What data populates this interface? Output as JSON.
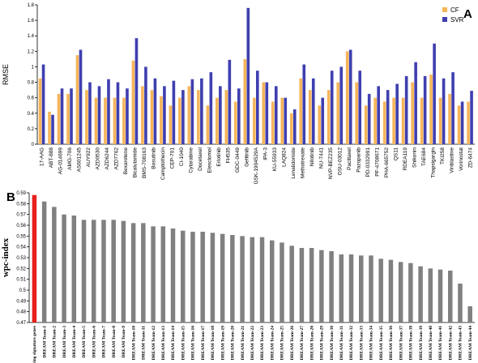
{
  "chart_data": [
    {
      "type": "bar",
      "panel": "A",
      "ylabel": "RMSE",
      "categories": [
        "17-AAG",
        "ABT-888",
        "AG-014699",
        "AMG-706",
        "AS601245",
        "AUY922",
        "AZD0530",
        "AZD6244",
        "AZD7762",
        "Bexarotene",
        "Bicalutamide",
        "BMS-708163",
        "Bosutinib",
        "Camptothecin",
        "CEP-701",
        "CI-1040",
        "Cytarabine",
        "Docetaxel",
        "Elesclomol",
        "Erlotinib",
        "FH535",
        "GDC-0449",
        "Gefitinib",
        "GSK-1904529A",
        "IPA-3",
        "KU-55933",
        "LAQ824",
        "Lenalidomide",
        "Methotrexate",
        "Nilotinib",
        "NU-7441",
        "NVP-BEZ235",
        "OSU-03012",
        "Paclitaxel",
        "Pazopanib",
        "PD-0332991",
        "PF-4708671",
        "PHA-665752",
        "QS11",
        "RDEA119",
        "Shikonin",
        "TAE684",
        "Thapsigargin",
        "TKI258",
        "Vinblastine",
        "Vorinostat",
        "ZD-6474"
      ],
      "series": [
        {
          "name": "CF",
          "color": "#f5b55a",
          "values": [
            0.85,
            0.42,
            0.65,
            0.65,
            1.15,
            0.7,
            0.6,
            0.6,
            0.6,
            0.6,
            1.08,
            0.75,
            0.7,
            0.62,
            0.5,
            0.6,
            0.75,
            0.7,
            0.5,
            0.6,
            0.7,
            0.55,
            1.1,
            0.6,
            0.8,
            0.55,
            0.6,
            0.4,
            0.85,
            0.7,
            0.5,
            0.7,
            0.8,
            1.2,
            0.8,
            0.5,
            0.6,
            0.55,
            0.6,
            0.6,
            0.8,
            0.6,
            0.9,
            0.6,
            0.65,
            0.5,
            0.55
          ]
        },
        {
          "name": "SVR",
          "color": "#3f3fb0",
          "values": [
            1.03,
            0.38,
            0.72,
            0.72,
            1.22,
            0.8,
            0.75,
            0.84,
            0.8,
            0.72,
            1.37,
            1.0,
            0.85,
            0.75,
            0.82,
            0.7,
            0.84,
            0.85,
            0.93,
            0.75,
            1.09,
            0.72,
            1.76,
            0.95,
            0.8,
            0.75,
            0.6,
            0.45,
            1.03,
            0.85,
            0.6,
            0.95,
            1.0,
            1.22,
            0.95,
            0.65,
            0.75,
            0.7,
            0.78,
            0.88,
            1.06,
            0.88,
            1.3,
            0.85,
            0.93,
            0.55,
            0.69
          ]
        }
      ],
      "ylim": [
        0,
        1.8
      ],
      "yticks": [
        0,
        0.2,
        0.4,
        0.6,
        0.8,
        1,
        1.2,
        1.4,
        1.6,
        1.8
      ],
      "legend": "upper right"
    },
    {
      "type": "bar",
      "panel": "B",
      "ylabel": "wpc-index",
      "categories": [
        "Using signature genes",
        "DREAM Team-1",
        "DREAM Team-2",
        "DREAM Team-3",
        "DREAM Team-4",
        "DREAM Team-5",
        "DREAM Team-6",
        "DREAM Team-7",
        "DREAM Team-8",
        "DREAM Team-9",
        "DREAM Team-10",
        "DREAM Team-11",
        "DREAM Team-12",
        "DREAM Team-13",
        "DREAM Team-14",
        "DREAM Team-15",
        "DREAM Team-16",
        "DREAM Team-17",
        "DREAM Team-18",
        "DREAM Team-19",
        "DREAM Team-20",
        "DREAM Team-21",
        "DREAM Team-22",
        "DREAM Team-23",
        "DREAM Team-24",
        "DREAM Team-25",
        "DREAM Team-26",
        "DREAM Team-27",
        "DREAM Team-28",
        "DREAM Team-29",
        "DREAM Team-30",
        "DREAM Team-31",
        "DREAM Team-32",
        "DREAM Team-33",
        "DREAM Team-34",
        "DREAM Team-35",
        "DREAM Team-36",
        "DREAM Team-37",
        "DREAM Team-38",
        "DREAM Team-39",
        "DREAM Team-40",
        "DREAM Team-41",
        "DREAM Team-42",
        "DREAM Team-43",
        "DREAM Team-44"
      ],
      "values": [
        0.588,
        0.582,
        0.577,
        0.57,
        0.569,
        0.565,
        0.565,
        0.565,
        0.565,
        0.564,
        0.562,
        0.562,
        0.559,
        0.559,
        0.557,
        0.555,
        0.554,
        0.554,
        0.553,
        0.552,
        0.551,
        0.55,
        0.549,
        0.549,
        0.546,
        0.544,
        0.541,
        0.539,
        0.539,
        0.537,
        0.536,
        0.533,
        0.533,
        0.532,
        0.532,
        0.529,
        0.528,
        0.526,
        0.525,
        0.522,
        0.52,
        0.519,
        0.518,
        0.506,
        0.485
      ],
      "colors": [
        "#e8201c",
        "#808080",
        "#808080",
        "#808080",
        "#808080",
        "#808080",
        "#808080",
        "#808080",
        "#808080",
        "#808080",
        "#808080",
        "#808080",
        "#808080",
        "#808080",
        "#808080",
        "#808080",
        "#808080",
        "#808080",
        "#808080",
        "#808080",
        "#808080",
        "#808080",
        "#808080",
        "#808080",
        "#808080",
        "#808080",
        "#808080",
        "#808080",
        "#808080",
        "#808080",
        "#808080",
        "#808080",
        "#808080",
        "#808080",
        "#808080",
        "#808080",
        "#808080",
        "#808080",
        "#808080",
        "#808080",
        "#808080",
        "#808080",
        "#808080",
        "#808080",
        "#808080"
      ],
      "ylim": [
        0.47,
        0.59
      ],
      "yticks": [
        0.47,
        0.48,
        0.49,
        0.5,
        0.51,
        0.52,
        0.53,
        0.54,
        0.55,
        0.56,
        0.57,
        0.58,
        0.59
      ]
    }
  ]
}
